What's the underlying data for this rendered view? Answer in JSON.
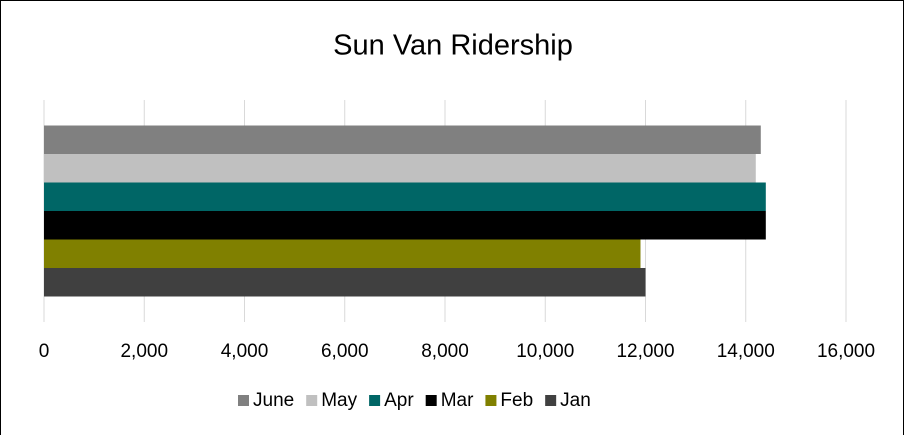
{
  "chart_data": {
    "type": "hbar",
    "title": "Sun Van Ridership",
    "categories": [
      null
    ],
    "series": [
      {
        "name": "June",
        "color": "#808080",
        "values": [
          14300
        ]
      },
      {
        "name": "May",
        "color": "#c0c0c0",
        "values": [
          14200
        ]
      },
      {
        "name": "Apr",
        "color": "#006666",
        "values": [
          14400
        ]
      },
      {
        "name": "Mar",
        "color": "#000000",
        "values": [
          14400
        ]
      },
      {
        "name": "Feb",
        "color": "#808000",
        "values": [
          11900
        ]
      },
      {
        "name": "Jan",
        "color": "#404040",
        "values": [
          12000
        ]
      }
    ],
    "xlim": [
      0,
      16000
    ],
    "xticks": [
      0,
      {
        "value": 2000,
        "label": "2,000"
      },
      {
        "value": 4000,
        "label": "4,000"
      },
      {
        "value": 6000,
        "label": "6,000"
      },
      {
        "value": 8000,
        "label": "8,000"
      },
      {
        "value": 10000,
        "label": "10,000"
      },
      {
        "value": 12000,
        "label": "12,000"
      },
      {
        "value": 14000,
        "label": "14,000"
      },
      {
        "value": 16000,
        "label": "16,000"
      }
    ],
    "grid": true,
    "legend": "bottom"
  }
}
